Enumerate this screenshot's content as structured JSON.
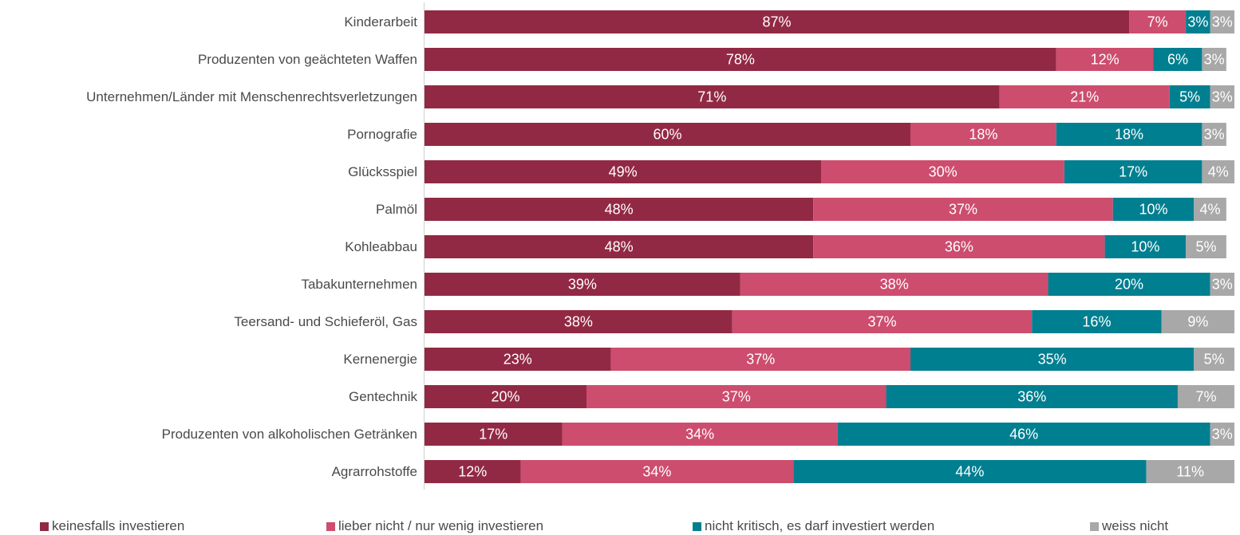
{
  "chart_data": {
    "type": "bar",
    "orientation": "horizontal",
    "stacked": true,
    "title": "",
    "xlabel": "",
    "ylabel": "",
    "xlim": [
      0,
      100
    ],
    "grid": false,
    "legend_position": "bottom",
    "value_suffix": "%",
    "categories": [
      "Kinderarbeit",
      "Produzenten von geächteten Waffen",
      "Unternehmen/Länder mit Menschenrechtsverletzungen",
      "Pornografie",
      "Glücksspiel",
      "Palmöl",
      "Kohleabbau",
      "Tabakunternehmen",
      "Teersand- und Schieferöl, Gas",
      "Kernenergie",
      "Gentechnik",
      "Produzenten von alkoholischen Getränken",
      "Agrarrohstoffe"
    ],
    "series": [
      {
        "name": "keinesfalls investieren",
        "color": "#922944",
        "values": [
          87,
          78,
          71,
          60,
          49,
          48,
          48,
          39,
          38,
          23,
          20,
          17,
          12
        ]
      },
      {
        "name": "lieber nicht / nur wenig investieren",
        "color": "#cd4d6e",
        "values": [
          7,
          12,
          21,
          18,
          30,
          37,
          36,
          38,
          37,
          37,
          37,
          34,
          34
        ]
      },
      {
        "name": "nicht kritisch, es darf investiert werden",
        "color": "#007f90",
        "values": [
          3,
          6,
          5,
          18,
          17,
          10,
          10,
          20,
          16,
          35,
          36,
          46,
          44
        ]
      },
      {
        "name": "weiss nicht",
        "color": "#a8a8a8",
        "values": [
          3,
          3,
          3,
          3,
          4,
          4,
          5,
          3,
          9,
          5,
          7,
          3,
          11
        ]
      }
    ]
  }
}
